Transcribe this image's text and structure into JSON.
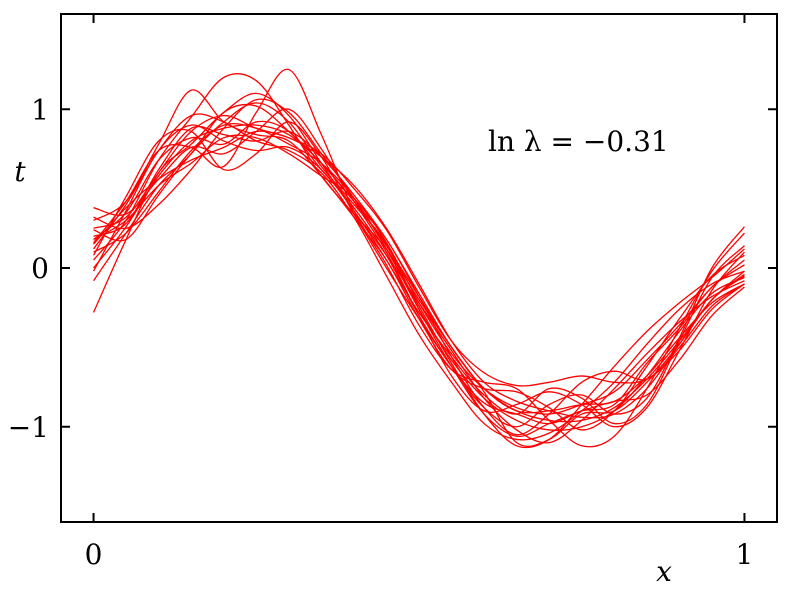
{
  "chart_data": {
    "type": "line",
    "title": "",
    "xlabel": "x",
    "ylabel": "t",
    "xlim": [
      -0.05,
      1.05
    ],
    "ylim": [
      -1.6,
      1.6
    ],
    "x_ticks": [
      0,
      1
    ],
    "x_tick_labels": [
      "0",
      "1"
    ],
    "y_ticks": [
      -1,
      0,
      1
    ],
    "y_tick_labels": [
      "−1",
      "0",
      "1"
    ],
    "grid": false,
    "legend": "none",
    "line_color": "#ff0000",
    "annotation": "ln λ = −0.31",
    "x": [
      0,
      0.05,
      0.1,
      0.15,
      0.2,
      0.25,
      0.3,
      0.35,
      0.4,
      0.45,
      0.5,
      0.55,
      0.6,
      0.65,
      0.7,
      0.75,
      0.8,
      0.85,
      0.9,
      0.95,
      1
    ],
    "series": [
      {
        "values": [
          0.18,
          0.35,
          0.68,
          0.82,
          0.78,
          0.92,
          0.86,
          0.62,
          0.38,
          0.08,
          -0.3,
          -0.62,
          -0.85,
          -0.92,
          -0.98,
          -0.9,
          -0.86,
          -0.6,
          -0.38,
          -0.12,
          0.02
        ]
      },
      {
        "values": [
          0.3,
          0.42,
          0.78,
          1.12,
          0.92,
          0.84,
          0.8,
          0.58,
          0.32,
          0.05,
          -0.32,
          -0.64,
          -0.76,
          -0.78,
          -0.88,
          -1.02,
          -0.9,
          -0.62,
          -0.32,
          -0.05,
          0.08
        ]
      },
      {
        "values": [
          -0.08,
          0.22,
          0.52,
          0.72,
          0.98,
          1.02,
          0.86,
          0.66,
          0.42,
          0.18,
          -0.18,
          -0.56,
          -0.88,
          -1.05,
          -0.92,
          -0.72,
          -0.65,
          -0.7,
          -0.5,
          -0.24,
          -0.1
        ]
      },
      {
        "values": [
          0.05,
          0.3,
          0.68,
          0.95,
          1.2,
          1.18,
          0.9,
          0.58,
          0.34,
          0.12,
          -0.2,
          -0.5,
          -0.78,
          -1.1,
          -1.08,
          -0.92,
          -0.9,
          -0.72,
          -0.48,
          -0.2,
          -0.04
        ]
      },
      {
        "values": [
          0.38,
          0.34,
          0.56,
          0.76,
          0.72,
          0.86,
          1.0,
          0.75,
          0.42,
          0.1,
          -0.3,
          -0.68,
          -0.9,
          -0.86,
          -0.78,
          -0.86,
          -1.0,
          -0.88,
          -0.52,
          -0.14,
          0.1
        ]
      },
      {
        "values": [
          0.16,
          0.42,
          0.74,
          0.76,
          0.64,
          0.98,
          1.25,
          0.84,
          0.36,
          0.02,
          -0.36,
          -0.64,
          -0.72,
          -0.76,
          -0.96,
          -1.12,
          -1.06,
          -0.76,
          -0.38,
          -0.02,
          0.22
        ]
      },
      {
        "values": [
          0.18,
          0.3,
          0.52,
          0.66,
          0.82,
          0.82,
          0.72,
          0.58,
          0.44,
          0.16,
          -0.22,
          -0.54,
          -0.76,
          -0.88,
          -0.92,
          -0.86,
          -0.78,
          -0.58,
          -0.36,
          -0.12,
          0.05
        ]
      },
      {
        "values": [
          0.24,
          0.18,
          0.46,
          0.72,
          0.92,
          1.04,
          0.92,
          0.64,
          0.4,
          0.15,
          -0.26,
          -0.62,
          -0.92,
          -1.06,
          -0.98,
          -0.9,
          -0.84,
          -0.8,
          -0.58,
          -0.3,
          -0.12
        ]
      },
      {
        "values": [
          -0.02,
          0.36,
          0.74,
          0.9,
          0.8,
          0.74,
          0.76,
          0.62,
          0.36,
          0.05,
          -0.28,
          -0.56,
          -0.8,
          -0.92,
          -0.76,
          -0.82,
          -0.98,
          -0.86,
          -0.46,
          -0.06,
          0.14
        ]
      },
      {
        "values": [
          0.1,
          0.22,
          0.48,
          0.74,
          0.9,
          0.88,
          0.78,
          0.66,
          0.44,
          0.12,
          -0.26,
          -0.58,
          -0.82,
          -0.96,
          -1.02,
          -1.0,
          -0.9,
          -0.68,
          -0.4,
          -0.16,
          -0.06
        ]
      },
      {
        "values": [
          0.12,
          0.4,
          0.74,
          0.96,
          0.92,
          0.8,
          0.74,
          0.6,
          0.32,
          -0.05,
          -0.42,
          -0.72,
          -0.98,
          -1.08,
          -1.04,
          -0.9,
          -0.72,
          -0.48,
          -0.26,
          -0.1,
          -0.02
        ]
      },
      {
        "values": [
          0.25,
          0.32,
          0.6,
          0.86,
          0.96,
          0.88,
          0.82,
          0.72,
          0.5,
          0.24,
          -0.12,
          -0.46,
          -0.66,
          -0.74,
          -0.72,
          -0.68,
          -0.72,
          -0.7,
          -0.52,
          -0.26,
          -0.1
        ]
      },
      {
        "values": [
          0.08,
          0.45,
          0.8,
          0.86,
          0.62,
          0.72,
          0.92,
          0.7,
          0.34,
          0.0,
          -0.32,
          -0.62,
          -0.88,
          -1.0,
          -0.86,
          -0.8,
          -0.92,
          -0.82,
          -0.44,
          0.0,
          0.26
        ]
      },
      {
        "values": [
          -0.28,
          0.18,
          0.6,
          0.78,
          0.98,
          1.1,
          0.96,
          0.66,
          0.36,
          0.08,
          -0.22,
          -0.52,
          -0.82,
          -1.02,
          -1.1,
          -0.96,
          -0.76,
          -0.54,
          -0.34,
          -0.18,
          -0.08
        ]
      },
      {
        "values": [
          0.2,
          0.28,
          0.62,
          0.88,
          0.84,
          0.8,
          0.86,
          0.7,
          0.46,
          0.18,
          -0.16,
          -0.5,
          -0.76,
          -0.9,
          -0.9,
          -0.86,
          -0.84,
          -0.68,
          -0.44,
          -0.22,
          -0.1
        ]
      },
      {
        "values": [
          0.15,
          0.38,
          0.56,
          0.68,
          0.76,
          0.86,
          0.82,
          0.7,
          0.52,
          0.25,
          -0.1,
          -0.46,
          -0.72,
          -0.84,
          -0.9,
          -0.94,
          -0.92,
          -0.76,
          -0.48,
          -0.2,
          -0.05
        ]
      },
      {
        "values": [
          0.32,
          0.25,
          0.4,
          0.62,
          0.88,
          1.06,
          0.98,
          0.72,
          0.44,
          0.12,
          -0.24,
          -0.6,
          -0.92,
          -1.12,
          -1.08,
          -0.86,
          -0.62,
          -0.4,
          -0.22,
          -0.06,
          0.12
        ]
      },
      {
        "values": [
          0.0,
          0.26,
          0.58,
          0.8,
          0.88,
          0.9,
          0.84,
          0.66,
          0.42,
          0.14,
          -0.18,
          -0.5,
          -0.76,
          -0.9,
          -0.96,
          -0.96,
          -0.88,
          -0.7,
          -0.46,
          -0.2,
          -0.02
        ]
      }
    ]
  }
}
